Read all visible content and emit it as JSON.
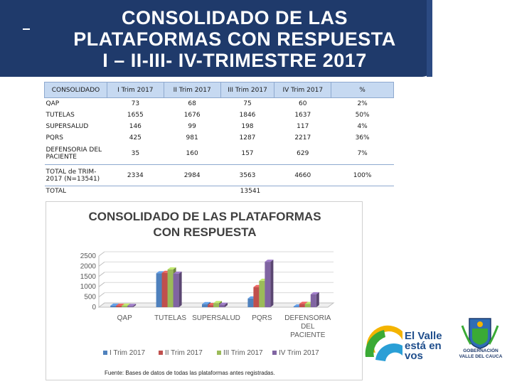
{
  "header": {
    "dash": "-",
    "title_lines": [
      "CONSOLIDADO DE LAS",
      "PLATAFORMAS CON RESPUESTA",
      "I – II-III- IV-TRIMESTRE 2017"
    ],
    "bg_color": "#1f3a6b"
  },
  "table": {
    "columns": [
      "CONSOLIDADO",
      "I Trim 2017",
      "II Trim 2017",
      "III Trim 2017",
      "IV Trim 2017",
      "%"
    ],
    "rows": [
      {
        "label": "QAP",
        "cells": [
          "73",
          "68",
          "75",
          "60",
          "2%"
        ]
      },
      {
        "label": "TUTELAS",
        "cells": [
          "1655",
          "1676",
          "1846",
          "1637",
          "50%"
        ]
      },
      {
        "label": "SUPERSALUD",
        "cells": [
          "146",
          "99",
          "198",
          "117",
          "4%"
        ]
      },
      {
        "label": "PQRS",
        "cells": [
          "425",
          "981",
          "1287",
          "2217",
          "36%"
        ]
      },
      {
        "label": "DEFENSORIA DEL PACIENTE",
        "cells": [
          "35",
          "160",
          "157",
          "629",
          "7%"
        ]
      },
      {
        "label": "TOTAL de TRIM-2017 (N=13541)",
        "cells": [
          "2334",
          "2984",
          "3563",
          "4660",
          "100%"
        ]
      }
    ],
    "total_label": "TOTAL",
    "total_value": "13541"
  },
  "chart_data": {
    "type": "bar",
    "title_lines": [
      "CONSOLIDADO DE LAS PLATAFORMAS",
      "CON RESPUESTA"
    ],
    "categories": [
      "QAP",
      "TUTELAS",
      "SUPERSALUD",
      "PQRS",
      "DEFENSORIA DEL PACIENTE"
    ],
    "category_label_lines": [
      [
        "QAP"
      ],
      [
        "TUTELAS"
      ],
      [
        "SUPERSALUD"
      ],
      [
        "PQRS"
      ],
      [
        "DEFENSORIA",
        "DEL",
        "PACIENTE"
      ]
    ],
    "series": [
      {
        "name": "I Trim 2017",
        "color": "#4f81bd",
        "values": [
          73,
          1655,
          146,
          425,
          35
        ]
      },
      {
        "name": "II Trim 2017",
        "color": "#c0504d",
        "values": [
          68,
          1676,
          99,
          981,
          160
        ]
      },
      {
        "name": "III Trim 2017",
        "color": "#9bbb59",
        "values": [
          75,
          1846,
          198,
          1287,
          157
        ]
      },
      {
        "name": "IV Trim 2017",
        "color": "#8064a2",
        "values": [
          60,
          1637,
          117,
          2217,
          629
        ]
      }
    ],
    "yticks": [
      "0",
      "500",
      "1000",
      "1500",
      "2000",
      "2500"
    ],
    "ylim": [
      0,
      2500
    ],
    "legend": "bottom"
  },
  "source": "Fuente: Bases de datos de todas las plataformas antes registradas.",
  "logos": {
    "valle_lines": [
      "El Valle",
      "está en",
      "vos"
    ],
    "gob_lines": [
      "GOBERNACIÓN",
      "VALLE DEL CAUCA"
    ]
  }
}
